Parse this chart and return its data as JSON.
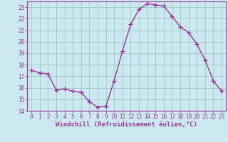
{
  "x": [
    0,
    1,
    2,
    3,
    4,
    5,
    6,
    7,
    8,
    9,
    10,
    11,
    12,
    13,
    14,
    15,
    16,
    17,
    18,
    19,
    20,
    21,
    22,
    23
  ],
  "y": [
    17.5,
    17.3,
    17.2,
    15.8,
    15.9,
    15.7,
    15.6,
    14.8,
    14.3,
    14.4,
    16.6,
    19.2,
    21.5,
    22.8,
    23.3,
    23.2,
    23.1,
    22.2,
    21.3,
    20.8,
    19.8,
    18.4,
    16.6,
    15.7
  ],
  "line_color": "#993399",
  "marker": "+",
  "marker_size": 4,
  "bg_color": "#cce8f0",
  "grid_color": "#99ccbb",
  "xlabel": "Windchill (Refroidissement éolien,°C)",
  "ylim": [
    14,
    23.5
  ],
  "yticks": [
    14,
    15,
    16,
    17,
    18,
    19,
    20,
    21,
    22,
    23
  ],
  "xticks": [
    0,
    1,
    2,
    3,
    4,
    5,
    6,
    7,
    8,
    9,
    10,
    11,
    12,
    13,
    14,
    15,
    16,
    17,
    18,
    19,
    20,
    21,
    22,
    23
  ],
  "tick_fontsize": 5.5,
  "xlabel_fontsize": 6.5,
  "line_width": 1.0
}
